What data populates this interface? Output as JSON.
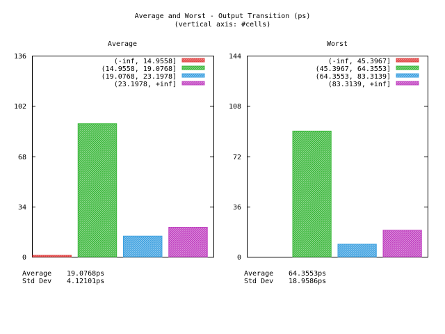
{
  "figure": {
    "title": "Average and Worst - Output Transition (ps)",
    "subtitle": "(vertical axis: #cells)"
  },
  "chart_data": [
    {
      "type": "bar",
      "title": "Average",
      "categories": [
        "(-inf, 14.9558]",
        "(14.9558, 19.0768]",
        "(19.0768, 23.1978]",
        "(23.1978, +inf]"
      ],
      "values": [
        1,
        90,
        14,
        20
      ],
      "colors": [
        "#e04040",
        "#3cb83c",
        "#3ca0e0",
        "#c040c0"
      ],
      "ylim": [
        0,
        136
      ],
      "yticks": [
        0,
        34,
        68,
        102,
        136
      ],
      "legend": "top-right",
      "grid": false,
      "stats": [
        {
          "label": "Average",
          "value": "19.0768ps"
        },
        {
          "label": "Std Dev",
          "value": "4.12101ps"
        }
      ]
    },
    {
      "type": "bar",
      "title": "Worst",
      "categories": [
        "(-inf, 45.3967]",
        "(45.3967, 64.3553]",
        "(64.3553, 83.3139]",
        "(83.3139, +inf]"
      ],
      "values": [
        0,
        90,
        9,
        19
      ],
      "colors": [
        "#e04040",
        "#3cb83c",
        "#3ca0e0",
        "#c040c0"
      ],
      "ylim": [
        0,
        144
      ],
      "yticks": [
        0,
        36,
        72,
        108,
        144
      ],
      "legend": "top-right",
      "grid": false,
      "stats": [
        {
          "label": "Average",
          "value": "64.3553ps"
        },
        {
          "label": "Std Dev",
          "value": "18.9586ps"
        }
      ]
    }
  ]
}
